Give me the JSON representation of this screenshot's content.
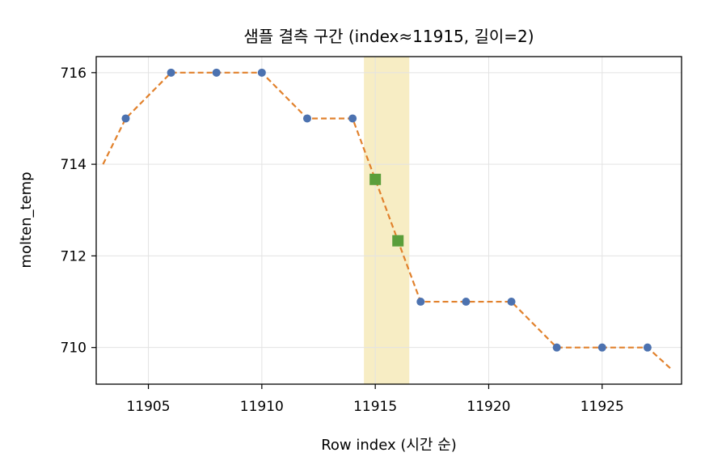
{
  "chart_data": {
    "type": "line",
    "title": "샘플 결측 구간 (index≈11915, 길이=2)",
    "xlabel": "Row index (시간 순)",
    "ylabel": "molten_temp",
    "xlim": [
      11902.7,
      11928.5
    ],
    "ylim": [
      709.2,
      716.35
    ],
    "x_ticks": [
      11905,
      11910,
      11915,
      11920,
      11925
    ],
    "y_ticks": [
      710,
      712,
      714,
      716
    ],
    "grid": true,
    "highlight_span": [
      11914.5,
      11916.5
    ],
    "interpolated_line": {
      "x": [
        11903,
        11904,
        11906,
        11908,
        11910,
        11912,
        11914,
        11915,
        11916,
        11917,
        11919,
        11921,
        11923,
        11925,
        11927,
        11928
      ],
      "y": [
        714.0,
        715.0,
        716.0,
        716.0,
        716.0,
        715.0,
        715.0,
        713.67,
        712.33,
        711.0,
        711.0,
        711.0,
        710.0,
        710.0,
        710.0,
        709.55
      ]
    },
    "observed_points": {
      "x": [
        11904,
        11906,
        11908,
        11910,
        11912,
        11914,
        11917,
        11919,
        11921,
        11923,
        11925,
        11927
      ],
      "y": [
        715,
        716,
        716,
        716,
        715,
        715,
        711,
        711,
        711,
        710,
        710,
        710
      ]
    },
    "imputed_points": {
      "x": [
        11915,
        11916
      ],
      "y": [
        713.67,
        712.33
      ]
    },
    "colors": {
      "line": "#E1812C",
      "observed": "#4C72B0",
      "imputed": "#5A9E3A",
      "highlight": "#F7EDC4",
      "grid": "#E3E3E3",
      "axes": "#000000"
    }
  }
}
